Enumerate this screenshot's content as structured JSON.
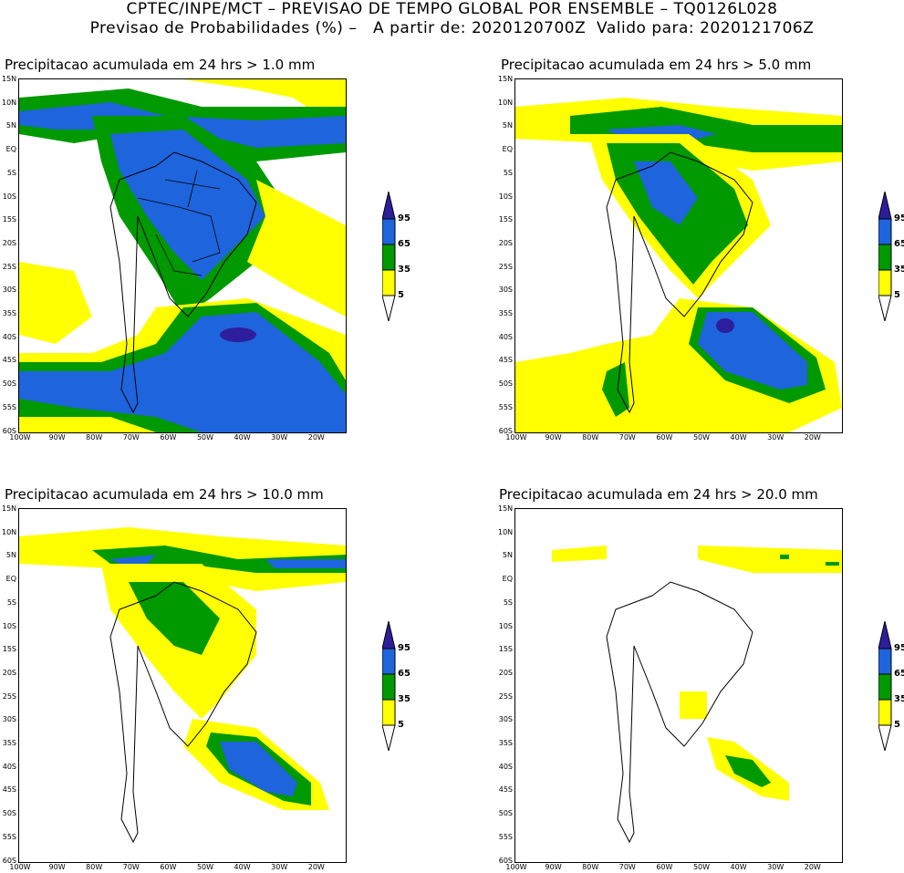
{
  "title_line1": "CPTEC/INPE/MCT – PREVISAO DE TEMPO GLOBAL POR ENSEMBLE – TQ0126L028",
  "title_line2": "Previsao de Probabilidades (%) –   A partir de: 2020120700Z  Valido para: 2020121706Z",
  "panels": [
    {
      "title": "Precipitacao acumulada em 24 hrs > 1.0 mm"
    },
    {
      "title": "Precipitacao acumulada em 24 hrs > 5.0 mm"
    },
    {
      "title": "Precipitacao acumulada em 24 hrs > 10.0 mm"
    },
    {
      "title": "Precipitacao acumulada em 24 hrs > 20.0 mm"
    }
  ],
  "lat_labels": [
    "15N",
    "10N",
    "5N",
    "EQ",
    "5S",
    "10S",
    "15S",
    "20S",
    "25S",
    "30S",
    "35S",
    "40S",
    "45S",
    "50S",
    "55S",
    "60S"
  ],
  "lon_labels": [
    "100W",
    "90W",
    "80W",
    "70W",
    "60W",
    "50W",
    "40W",
    "30W",
    "20W"
  ],
  "colorbar": {
    "labels": [
      "95",
      "65",
      "35",
      "5"
    ],
    "colors": {
      "lt5": "#ffffff",
      "c5": "#ffff00",
      "c35": "#009900",
      "c65": "#1e64dc",
      "c95": "#2d1e9b"
    }
  }
}
